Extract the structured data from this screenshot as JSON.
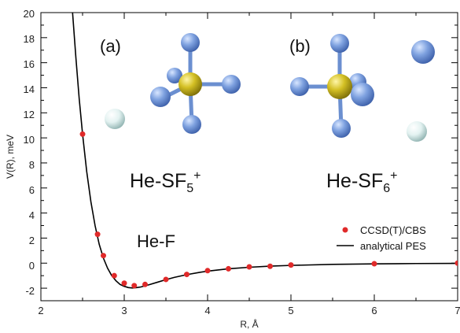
{
  "chart_data": {
    "type": "line",
    "xlabel": "R, Å",
    "ylabel": "V(R), meV",
    "xlim": [
      2,
      7
    ],
    "ylim": [
      -3,
      20
    ],
    "x_ticks": [
      "2",
      "3",
      "4",
      "5",
      "6",
      "7"
    ],
    "y_ticks": [
      "-2",
      "0",
      "2",
      "4",
      "6",
      "8",
      "10",
      "12",
      "14",
      "16",
      "18",
      "20"
    ],
    "grid": false,
    "legend_position": "bottom-right",
    "series": [
      {
        "name": "CCSD(T)/CBS",
        "kind": "scatter",
        "color": "#e02a2a",
        "x": [
          2.5,
          2.68,
          2.75,
          2.88,
          3.0,
          3.12,
          3.25,
          3.5,
          3.75,
          4.0,
          4.25,
          4.5,
          4.75,
          5.0,
          6.0,
          7.0
        ],
        "y": [
          10.3,
          2.3,
          0.6,
          -1.0,
          -1.6,
          -1.8,
          -1.7,
          -1.3,
          -0.9,
          -0.6,
          -0.45,
          -0.3,
          -0.25,
          -0.15,
          -0.05,
          0.0
        ]
      },
      {
        "name": "analytical PES",
        "kind": "line",
        "color": "#000000",
        "x": [
          2.38,
          2.42,
          2.46,
          2.5,
          2.55,
          2.6,
          2.65,
          2.7,
          2.75,
          2.8,
          2.85,
          2.9,
          2.95,
          3.0,
          3.05,
          3.1,
          3.15,
          3.2,
          3.3,
          3.4,
          3.5,
          3.6,
          3.75,
          3.9,
          4.0,
          4.25,
          4.5,
          4.75,
          5.0,
          5.5,
          6.0,
          6.5,
          7.0
        ],
        "y": [
          20.0,
          16.4,
          13.1,
          10.3,
          7.3,
          4.9,
          3.0,
          1.5,
          0.4,
          -0.4,
          -1.0,
          -1.4,
          -1.7,
          -1.85,
          -1.95,
          -1.98,
          -1.95,
          -1.9,
          -1.72,
          -1.52,
          -1.32,
          -1.14,
          -0.92,
          -0.74,
          -0.64,
          -0.45,
          -0.33,
          -0.24,
          -0.18,
          -0.1,
          -0.06,
          -0.03,
          -0.02
        ]
      }
    ],
    "annotations": {
      "panel_a": "(a)",
      "panel_b": "(b)",
      "label_a_main": "He-SF",
      "label_a_sub": "5",
      "label_a_sup": "+",
      "label_b_main": "He-SF",
      "label_b_sub": "6",
      "label_b_sup": "+",
      "label_hef": "He-F"
    },
    "colors": {
      "fluorine": "#6b8fd0",
      "sulfur": "#c8b51c",
      "helium": "#dfeeee",
      "points": "#e02a2a"
    }
  }
}
